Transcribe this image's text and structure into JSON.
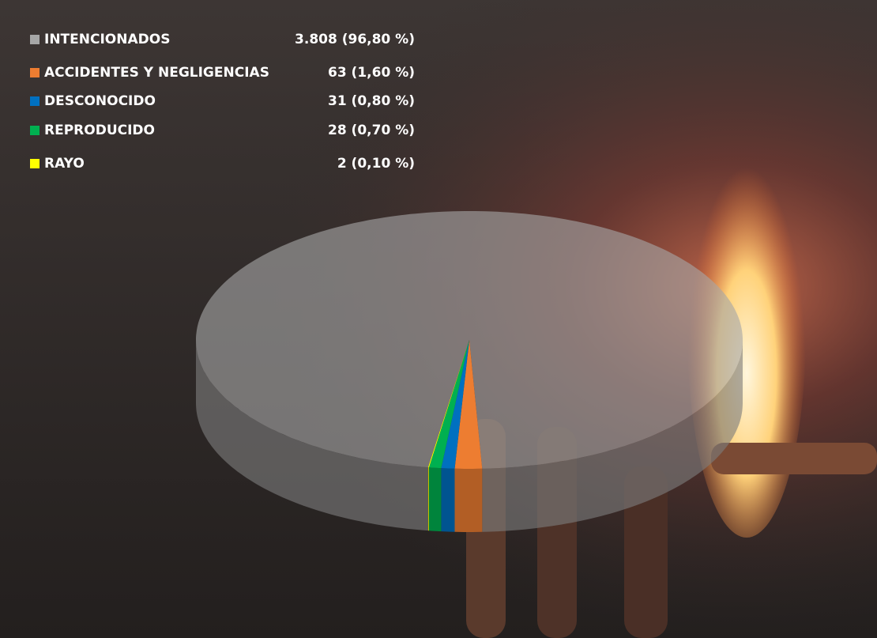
{
  "chart_data": {
    "type": "pie",
    "categories": [
      "INTENCIONADOS",
      "ACCIDENTES Y NEGLIGENCIAS",
      "DESCONOCIDO",
      "REPRODUCIDO",
      "RAYO"
    ],
    "values": [
      3808,
      63,
      31,
      28,
      2
    ],
    "value_labels": [
      "3.808 (96,80 %)",
      "63 (1,60 %)",
      "31 (0,80 %)",
      "28 (0,70 %)",
      "2 (0,10 %)"
    ],
    "colors": [
      "#a6a6a6",
      "#ed7d31",
      "#0070c0",
      "#00b050",
      "#ffff00"
    ]
  }
}
